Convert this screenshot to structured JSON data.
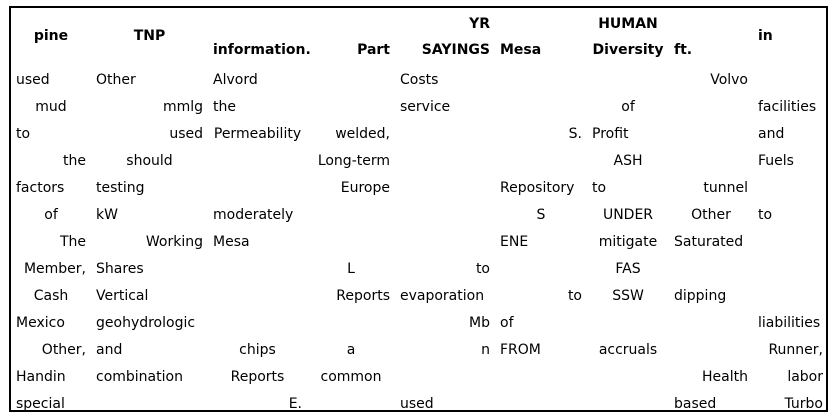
{
  "table": {
    "headers": [
      {
        "text": "pine",
        "align": "c",
        "valign": "vm"
      },
      {
        "text": "TNP",
        "align": "c",
        "valign": "vm"
      },
      {
        "text": "information.",
        "align": "l",
        "valign": "vb"
      },
      {
        "text": "Part",
        "align": "r",
        "valign": "vb"
      },
      {
        "text": "YR\nSAYINGS",
        "align": "r",
        "valign": "vb"
      },
      {
        "text": "Mesa",
        "align": "l",
        "valign": "vb"
      },
      {
        "text": "HUMAN\nDiversity",
        "align": "c",
        "valign": "vb"
      },
      {
        "text": "ft.",
        "align": "l",
        "valign": "vb"
      },
      {
        "text": "in",
        "align": "l",
        "valign": "vm"
      }
    ],
    "align": [
      "r",
      "l",
      "l",
      "r",
      "l",
      "l",
      "c",
      "r",
      "r"
    ],
    "rows": [
      [
        {
          "t": "used",
          "a": "l"
        },
        {
          "t": "Other",
          "a": "l"
        },
        {
          "t": "Alvord",
          "a": "l"
        },
        {
          "t": "",
          "a": "r"
        },
        {
          "t": "Costs",
          "a": "l"
        },
        {
          "t": "",
          "a": "l"
        },
        {
          "t": "",
          "a": "c"
        },
        {
          "t": "Volvo",
          "a": "r"
        },
        {
          "t": "",
          "a": "r"
        }
      ],
      [
        {
          "t": "mud",
          "a": "c"
        },
        {
          "t": "mmlg",
          "a": "r"
        },
        {
          "t": "the",
          "a": "l"
        },
        {
          "t": "",
          "a": "r"
        },
        {
          "t": "service",
          "a": "l"
        },
        {
          "t": "",
          "a": "l"
        },
        {
          "t": "of",
          "a": "c"
        },
        {
          "t": "",
          "a": "r"
        },
        {
          "t": "facilities",
          "a": "l"
        }
      ],
      [
        {
          "t": "to",
          "a": "l"
        },
        {
          "t": "used",
          "a": "r"
        },
        {
          "t": "Permeability",
          "a": "c"
        },
        {
          "t": "welded,",
          "a": "r"
        },
        {
          "t": "",
          "a": "l"
        },
        {
          "t": "S.",
          "a": "r"
        },
        {
          "t": "Profit",
          "a": "l"
        },
        {
          "t": "",
          "a": "r"
        },
        {
          "t": "and",
          "a": "l"
        }
      ],
      [
        {
          "t": "the",
          "a": "r"
        },
        {
          "t": "should",
          "a": "c"
        },
        {
          "t": "",
          "a": "l"
        },
        {
          "t": "Long-term",
          "a": "r"
        },
        {
          "t": "",
          "a": "l"
        },
        {
          "t": "",
          "a": "l"
        },
        {
          "t": "ASH",
          "a": "c"
        },
        {
          "t": "",
          "a": "r"
        },
        {
          "t": "Fuels",
          "a": "l"
        }
      ],
      [
        {
          "t": "factors",
          "a": "l"
        },
        {
          "t": "testing",
          "a": "l"
        },
        {
          "t": "",
          "a": "l"
        },
        {
          "t": "Europe",
          "a": "r"
        },
        {
          "t": "",
          "a": "l"
        },
        {
          "t": "Repository",
          "a": "l"
        },
        {
          "t": "to",
          "a": "l"
        },
        {
          "t": "tunnel",
          "a": "r"
        },
        {
          "t": "",
          "a": "r"
        }
      ],
      [
        {
          "t": "of",
          "a": "c"
        },
        {
          "t": "kW",
          "a": "l"
        },
        {
          "t": "moderately",
          "a": "l"
        },
        {
          "t": "",
          "a": "r"
        },
        {
          "t": "",
          "a": "l"
        },
        {
          "t": "S",
          "a": "c"
        },
        {
          "t": "UNDER",
          "a": "c"
        },
        {
          "t": "Other",
          "a": "c"
        },
        {
          "t": "to",
          "a": "l"
        }
      ],
      [
        {
          "t": "The",
          "a": "r"
        },
        {
          "t": "Working",
          "a": "r"
        },
        {
          "t": "Mesa",
          "a": "l"
        },
        {
          "t": "",
          "a": "r"
        },
        {
          "t": "",
          "a": "l"
        },
        {
          "t": "ENE",
          "a": "l"
        },
        {
          "t": "mitigate",
          "a": "c"
        },
        {
          "t": "Saturated",
          "a": "l"
        },
        {
          "t": "",
          "a": "r"
        }
      ],
      [
        {
          "t": "Member,",
          "a": "r"
        },
        {
          "t": "Shares",
          "a": "l"
        },
        {
          "t": "",
          "a": "l"
        },
        {
          "t": "L",
          "a": "c"
        },
        {
          "t": "to",
          "a": "r"
        },
        {
          "t": "",
          "a": "l"
        },
        {
          "t": "FAS",
          "a": "c"
        },
        {
          "t": "",
          "a": "r"
        },
        {
          "t": "",
          "a": "r"
        }
      ],
      [
        {
          "t": "Cash",
          "a": "c"
        },
        {
          "t": "Vertical",
          "a": "l"
        },
        {
          "t": "",
          "a": "l"
        },
        {
          "t": "Reports",
          "a": "r"
        },
        {
          "t": "evaporation",
          "a": "l"
        },
        {
          "t": "to",
          "a": "r"
        },
        {
          "t": "SSW",
          "a": "c"
        },
        {
          "t": "dipping",
          "a": "l"
        },
        {
          "t": "",
          "a": "r"
        }
      ],
      [
        {
          "t": "Mexico",
          "a": "l"
        },
        {
          "t": "geohydrologic",
          "a": "l"
        },
        {
          "t": "",
          "a": "l"
        },
        {
          "t": "",
          "a": "r"
        },
        {
          "t": "Mb",
          "a": "r"
        },
        {
          "t": "of",
          "a": "l"
        },
        {
          "t": "",
          "a": "c"
        },
        {
          "t": "",
          "a": "r"
        },
        {
          "t": "liabilities",
          "a": "l"
        }
      ],
      [
        {
          "t": "Other,",
          "a": "r"
        },
        {
          "t": "and",
          "a": "l"
        },
        {
          "t": "chips",
          "a": "c"
        },
        {
          "t": "a",
          "a": "c"
        },
        {
          "t": "n",
          "a": "r"
        },
        {
          "t": "FROM",
          "a": "l"
        },
        {
          "t": "accruals",
          "a": "c"
        },
        {
          "t": "",
          "a": "r"
        },
        {
          "t": "Runner,",
          "a": "r"
        }
      ],
      [
        {
          "t": "Handin",
          "a": "l"
        },
        {
          "t": "combination",
          "a": "l"
        },
        {
          "t": "Reports",
          "a": "c"
        },
        {
          "t": "common",
          "a": "c"
        },
        {
          "t": "",
          "a": "l"
        },
        {
          "t": "",
          "a": "l"
        },
        {
          "t": "",
          "a": "c"
        },
        {
          "t": "Health",
          "a": "r"
        },
        {
          "t": "labor",
          "a": "r"
        }
      ],
      [
        {
          "t": "special",
          "a": "l"
        },
        {
          "t": "",
          "a": "l"
        },
        {
          "t": "E.",
          "a": "r"
        },
        {
          "t": "",
          "a": "r"
        },
        {
          "t": "used",
          "a": "l"
        },
        {
          "t": "",
          "a": "l"
        },
        {
          "t": "",
          "a": "c"
        },
        {
          "t": "based",
          "a": "l"
        },
        {
          "t": "Turbo",
          "a": "r"
        }
      ]
    ]
  }
}
